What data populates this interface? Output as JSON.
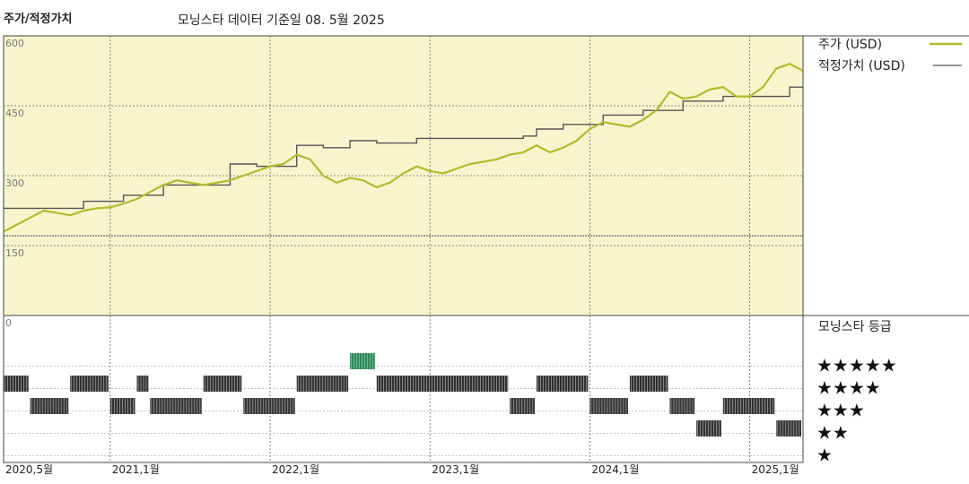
{
  "header": {
    "title": "주가/적정가치",
    "subtitle": "모닝스타 데이터 기준일 08. 5월 2025"
  },
  "chart_data": {
    "type": "line",
    "title": "주가/적정가치",
    "subtitle": "모닝스타 데이터 기준일 08. 5월 2025",
    "x_range": [
      "2020-05",
      "2025-05"
    ],
    "x_ticks": [
      {
        "date": "2020-05",
        "label": "2020,5월"
      },
      {
        "date": "2021-01",
        "label": "2021,1월"
      },
      {
        "date": "2022-01",
        "label": "2022,1월"
      },
      {
        "date": "2023-01",
        "label": "2023,1월"
      },
      {
        "date": "2024-01",
        "label": "2024,1월"
      },
      {
        "date": "2025-01",
        "label": "2025,1월"
      }
    ],
    "y_range": [
      0,
      600
    ],
    "y_ticks": [
      {
        "value": 600,
        "label": "600"
      },
      {
        "value": 450,
        "label": "450"
      },
      {
        "value": 300,
        "label": "300"
      },
      {
        "value": 150,
        "label": "150"
      },
      {
        "value": 0,
        "label": "0"
      }
    ],
    "series": [
      {
        "name": "주가 (USD)",
        "color": "#b5ba2c",
        "points": [
          [
            "2020-05",
            180
          ],
          [
            "2020-06",
            195
          ],
          [
            "2020-07",
            210
          ],
          [
            "2020-08",
            225
          ],
          [
            "2020-09",
            220
          ],
          [
            "2020-10",
            215
          ],
          [
            "2020-11",
            225
          ],
          [
            "2020-12",
            230
          ],
          [
            "2021-01",
            232
          ],
          [
            "2021-02",
            240
          ],
          [
            "2021-03",
            250
          ],
          [
            "2021-04",
            265
          ],
          [
            "2021-05",
            280
          ],
          [
            "2021-06",
            290
          ],
          [
            "2021-07",
            285
          ],
          [
            "2021-08",
            280
          ],
          [
            "2021-09",
            285
          ],
          [
            "2021-10",
            290
          ],
          [
            "2021-11",
            300
          ],
          [
            "2021-12",
            310
          ],
          [
            "2022-01",
            320
          ],
          [
            "2022-02",
            325
          ],
          [
            "2022-03",
            345
          ],
          [
            "2022-04",
            335
          ],
          [
            "2022-05",
            300
          ],
          [
            "2022-06",
            285
          ],
          [
            "2022-07",
            295
          ],
          [
            "2022-08",
            290
          ],
          [
            "2022-09",
            275
          ],
          [
            "2022-10",
            285
          ],
          [
            "2022-11",
            305
          ],
          [
            "2022-12",
            320
          ],
          [
            "2023-01",
            310
          ],
          [
            "2023-02",
            305
          ],
          [
            "2023-03",
            315
          ],
          [
            "2023-04",
            325
          ],
          [
            "2023-05",
            330
          ],
          [
            "2023-06",
            335
          ],
          [
            "2023-07",
            345
          ],
          [
            "2023-08",
            350
          ],
          [
            "2023-09",
            365
          ],
          [
            "2023-10",
            350
          ],
          [
            "2023-11",
            360
          ],
          [
            "2023-12",
            375
          ],
          [
            "2024-01",
            400
          ],
          [
            "2024-02",
            415
          ],
          [
            "2024-03",
            410
          ],
          [
            "2024-04",
            405
          ],
          [
            "2024-05",
            420
          ],
          [
            "2024-06",
            440
          ],
          [
            "2024-07",
            480
          ],
          [
            "2024-08",
            465
          ],
          [
            "2024-09",
            470
          ],
          [
            "2024-10",
            485
          ],
          [
            "2024-11",
            490
          ],
          [
            "2024-12",
            470
          ],
          [
            "2025-01",
            470
          ],
          [
            "2025-02",
            490
          ],
          [
            "2025-03",
            530
          ],
          [
            "2025-04",
            540
          ],
          [
            "2025-05",
            525
          ]
        ]
      },
      {
        "name": "적정가치 (USD)",
        "color": "#555555",
        "steps": [
          [
            "2020-05",
            230
          ],
          [
            "2020-11",
            245
          ],
          [
            "2021-02",
            258
          ],
          [
            "2021-05",
            280
          ],
          [
            "2021-10",
            325
          ],
          [
            "2021-12",
            320
          ],
          [
            "2022-03",
            365
          ],
          [
            "2022-05",
            360
          ],
          [
            "2022-07",
            375
          ],
          [
            "2022-09",
            370
          ],
          [
            "2022-12",
            380
          ],
          [
            "2023-08",
            385
          ],
          [
            "2023-09",
            400
          ],
          [
            "2023-11",
            410
          ],
          [
            "2024-02",
            430
          ],
          [
            "2024-05",
            440
          ],
          [
            "2024-08",
            460
          ],
          [
            "2024-11",
            470
          ],
          [
            "2025-04",
            490
          ],
          [
            "2025-05",
            490
          ]
        ]
      }
    ],
    "legend": {
      "placement": "right",
      "items": [
        {
          "label": "주가 (USD)",
          "color": "#b5ba2c"
        },
        {
          "label": "적정가치 (USD)",
          "color": "#555555"
        }
      ]
    },
    "rating": {
      "title": "모닝스타 등급",
      "levels": [
        {
          "stars": 5,
          "label": "★★★★★"
        },
        {
          "stars": 4,
          "label": "★★★★"
        },
        {
          "stars": 3,
          "label": "★★★"
        },
        {
          "stars": 2,
          "label": "★★"
        },
        {
          "stars": 1,
          "label": "★"
        }
      ],
      "periods": [
        {
          "start": "2020-05",
          "end": "2020-07",
          "stars": 4
        },
        {
          "start": "2020-07",
          "end": "2020-10",
          "stars": 3
        },
        {
          "start": "2020-10",
          "end": "2021-01",
          "stars": 4
        },
        {
          "start": "2021-01",
          "end": "2021-03",
          "stars": 3
        },
        {
          "start": "2021-03",
          "end": "2021-04",
          "stars": 4
        },
        {
          "start": "2021-04",
          "end": "2021-08",
          "stars": 3
        },
        {
          "start": "2021-08",
          "end": "2021-11",
          "stars": 4
        },
        {
          "start": "2021-11",
          "end": "2022-03",
          "stars": 3
        },
        {
          "start": "2022-03",
          "end": "2022-07",
          "stars": 4
        },
        {
          "start": "2022-07",
          "end": "2022-09",
          "stars": 5
        },
        {
          "start": "2022-09",
          "end": "2023-07",
          "stars": 4
        },
        {
          "start": "2023-07",
          "end": "2023-09",
          "stars": 3
        },
        {
          "start": "2023-09",
          "end": "2024-01",
          "stars": 4
        },
        {
          "start": "2024-01",
          "end": "2024-04",
          "stars": 3
        },
        {
          "start": "2024-04",
          "end": "2024-07",
          "stars": 4
        },
        {
          "start": "2024-07",
          "end": "2024-09",
          "stars": 3
        },
        {
          "start": "2024-09",
          "end": "2024-11",
          "stars": 2
        },
        {
          "start": "2024-11",
          "end": "2025-03",
          "stars": 3
        },
        {
          "start": "2025-03",
          "end": "2025-05",
          "stars": 2
        }
      ],
      "colors": {
        "default": "#333333",
        "five": "#2e8b57"
      }
    },
    "colors": {
      "plot_background": "#f8f5cc",
      "grid": "#666666"
    }
  }
}
